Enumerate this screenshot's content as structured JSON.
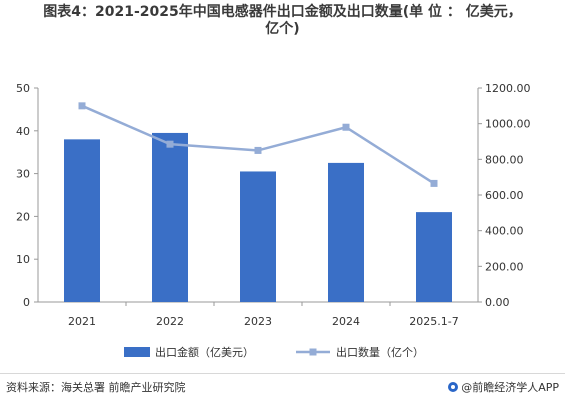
{
  "title": {
    "line1": "图表4：2021-2025年中国电感器件出口金额及出口数量(单 位 ：  亿美元，",
    "line2": "亿个)"
  },
  "chart_data": {
    "type": "bar",
    "categories": [
      "2021",
      "2022",
      "2023",
      "2024",
      "2025.1-7"
    ],
    "series": [
      {
        "name": "出口金额（亿美元）",
        "type": "bar",
        "axis": "left",
        "color": "#3a6fc6",
        "values": [
          38.0,
          39.5,
          30.5,
          32.5,
          21.0
        ]
      },
      {
        "name": "出口数量（亿个）",
        "type": "line",
        "axis": "right",
        "color": "#94acd6",
        "values": [
          1100,
          885,
          850,
          980,
          665
        ]
      }
    ],
    "y_left": {
      "min": 0,
      "max": 50,
      "ticks": [
        "0",
        "10",
        "20",
        "30",
        "40",
        "50"
      ]
    },
    "y_right": {
      "min": 0,
      "max": 1200,
      "ticks": [
        "0.00",
        "200.00",
        "400.00",
        "600.00",
        "800.00",
        "1000.00",
        "1200.00"
      ]
    },
    "grid": false,
    "legend_position": "bottom"
  },
  "footer": {
    "source": "资料来源：海关总署  前瞻产业研究院",
    "brand": "@前瞻经济学人APP"
  }
}
